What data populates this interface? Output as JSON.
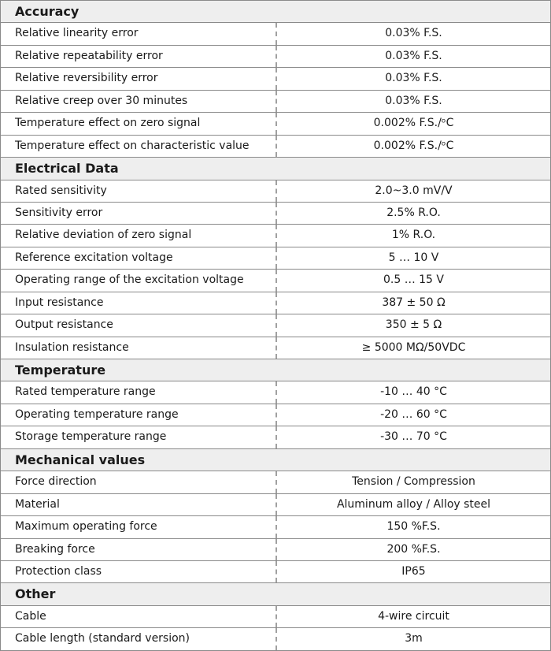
{
  "sections": [
    {
      "title": "Accuracy",
      "rows": [
        [
          "Relative linearity error",
          "0.03% F.S."
        ],
        [
          "Relative repeatability error",
          "0.03% F.S."
        ],
        [
          "Relative reversibility error",
          "0.03% F.S."
        ],
        [
          "Relative creep over 30 minutes",
          "0.03% F.S."
        ],
        [
          "Temperature effect on zero signal",
          "0.002% F.S./ᵒC"
        ],
        [
          "Temperature effect on characteristic value",
          "0.002% F.S./ᵒC"
        ]
      ]
    },
    {
      "title": "Electrical Data",
      "rows": [
        [
          "Rated sensitivity",
          "2.0~3.0 mV/V"
        ],
        [
          "Sensitivity error",
          "2.5% R.O."
        ],
        [
          "Relative deviation of zero signal",
          "1% R.O."
        ],
        [
          "Reference excitation voltage",
          "5 … 10 V"
        ],
        [
          "Operating range of the excitation voltage",
          "0.5 … 15 V"
        ],
        [
          "Input resistance",
          "387 ± 50 Ω"
        ],
        [
          "Output resistance",
          "350 ± 5 Ω"
        ],
        [
          "Insulation resistance",
          "≥ 5000 MΩ/50VDC"
        ]
      ]
    },
    {
      "title": "Temperature",
      "rows": [
        [
          "Rated temperature range",
          "-10 … 40 °C"
        ],
        [
          "Operating temperature range",
          "-20 … 60 °C"
        ],
        [
          "Storage temperature range",
          "-30 … 70 °C"
        ]
      ]
    },
    {
      "title": "Mechanical values",
      "rows": [
        [
          "Force direction",
          "Tension / Compression"
        ],
        [
          "Material",
          "Aluminum alloy / Alloy steel"
        ],
        [
          "Maximum operating force",
          "150 %F.S."
        ],
        [
          "Breaking force",
          "200 %F.S."
        ],
        [
          "Protection class",
          "IP65"
        ]
      ]
    },
    {
      "title": "Other",
      "rows": [
        [
          "Cable",
          "4-wire circuit"
        ],
        [
          "Cable length (standard version)",
          "3m"
        ]
      ]
    }
  ]
}
